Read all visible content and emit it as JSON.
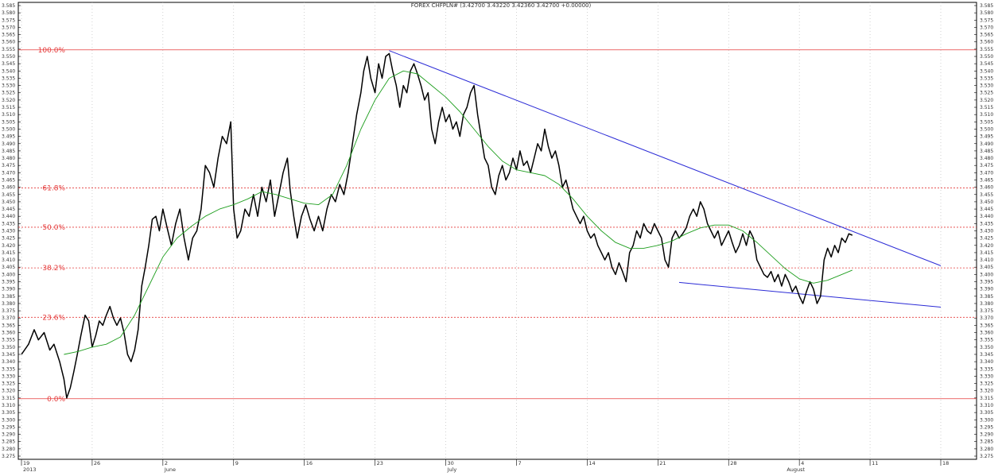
{
  "chart_data": {
    "type": "line",
    "title": "FOREX CHFPLN# (3.42700 3.43220 3.42360 3.42700 +0.00000)",
    "ylim": [
      3.275,
      3.585
    ],
    "y_tick_step": 0.005,
    "x_range": [
      0,
      130
    ],
    "grid": true,
    "x_ticks": [
      {
        "x": 0,
        "label": "19"
      },
      {
        "x": 10,
        "label": "26"
      },
      {
        "x": 20,
        "label": "2"
      },
      {
        "x": 30,
        "label": "9"
      },
      {
        "x": 40,
        "label": "16"
      },
      {
        "x": 50,
        "label": "23"
      },
      {
        "x": 60,
        "label": "30"
      },
      {
        "x": 70,
        "label": "7"
      },
      {
        "x": 80,
        "label": "14"
      },
      {
        "x": 90,
        "label": "21"
      },
      {
        "x": 100,
        "label": "28"
      },
      {
        "x": 110,
        "label": "4"
      },
      {
        "x": 120,
        "label": "11"
      },
      {
        "x": 130,
        "label": "18"
      }
    ],
    "x_subticks": [
      {
        "x": 0,
        "label": "2013"
      },
      {
        "x": 20,
        "label": "June"
      },
      {
        "x": 60,
        "label": "July"
      },
      {
        "x": 108,
        "label": "August"
      }
    ],
    "fib_levels": [
      {
        "name": "100.0%",
        "value": 3.5545
      },
      {
        "name": "61.8%",
        "value": 3.4595
      },
      {
        "name": "50.0%",
        "value": 3.4325
      },
      {
        "name": "38.2%",
        "value": 3.4045
      },
      {
        "name": "23.6%",
        "value": 3.3705
      },
      {
        "name": "0.0%",
        "value": 3.3145
      }
    ],
    "trendlines": [
      {
        "name": "resistance",
        "points": [
          [
            52,
            3.554
          ],
          [
            130,
            3.406
          ]
        ]
      },
      {
        "name": "support",
        "points": [
          [
            93,
            3.3945
          ],
          [
            130,
            3.3775
          ]
        ]
      }
    ],
    "series": [
      {
        "values": [
          [
            0,
            3.345
          ],
          [
            1,
            3.352
          ],
          [
            1.8,
            3.362
          ],
          [
            2.4,
            3.355
          ],
          [
            3.2,
            3.36
          ],
          [
            4,
            3.348
          ],
          [
            4.6,
            3.352
          ],
          [
            5.4,
            3.34
          ],
          [
            6,
            3.328
          ],
          [
            6.4,
            3.315
          ],
          [
            6.9,
            3.322
          ],
          [
            7.4,
            3.333
          ],
          [
            7.9,
            3.345
          ],
          [
            8.4,
            3.358
          ],
          [
            9,
            3.372
          ],
          [
            9.5,
            3.368
          ],
          [
            10,
            3.35
          ],
          [
            10.5,
            3.358
          ],
          [
            11,
            3.368
          ],
          [
            11.5,
            3.365
          ],
          [
            12,
            3.372
          ],
          [
            12.5,
            3.378
          ],
          [
            13,
            3.37
          ],
          [
            13.5,
            3.365
          ],
          [
            14,
            3.37
          ],
          [
            14.5,
            3.36
          ],
          [
            15,
            3.345
          ],
          [
            15.5,
            3.34
          ],
          [
            16,
            3.348
          ],
          [
            16.5,
            3.362
          ],
          [
            17,
            3.392
          ],
          [
            17.5,
            3.405
          ],
          [
            18,
            3.42
          ],
          [
            18.5,
            3.438
          ],
          [
            19,
            3.44
          ],
          [
            19.5,
            3.43
          ],
          [
            20,
            3.445
          ],
          [
            20.6,
            3.432
          ],
          [
            21.2,
            3.42
          ],
          [
            21.8,
            3.435
          ],
          [
            22.4,
            3.445
          ],
          [
            23,
            3.425
          ],
          [
            23.6,
            3.41
          ],
          [
            24.2,
            3.425
          ],
          [
            24.8,
            3.43
          ],
          [
            25.4,
            3.445
          ],
          [
            26,
            3.475
          ],
          [
            26.6,
            3.47
          ],
          [
            27.2,
            3.46
          ],
          [
            27.8,
            3.48
          ],
          [
            28.4,
            3.495
          ],
          [
            29,
            3.49
          ],
          [
            29.6,
            3.505
          ],
          [
            30,
            3.445
          ],
          [
            30.5,
            3.425
          ],
          [
            31,
            3.43
          ],
          [
            31.6,
            3.445
          ],
          [
            32.2,
            3.44
          ],
          [
            32.8,
            3.455
          ],
          [
            33.4,
            3.44
          ],
          [
            34,
            3.46
          ],
          [
            34.6,
            3.45
          ],
          [
            35.2,
            3.465
          ],
          [
            35.8,
            3.44
          ],
          [
            36.4,
            3.455
          ],
          [
            37,
            3.47
          ],
          [
            37.6,
            3.48
          ],
          [
            38,
            3.458
          ],
          [
            38.5,
            3.44
          ],
          [
            39,
            3.425
          ],
          [
            39.6,
            3.44
          ],
          [
            40.2,
            3.448
          ],
          [
            40.8,
            3.438
          ],
          [
            41.4,
            3.43
          ],
          [
            42,
            3.44
          ],
          [
            42.6,
            3.43
          ],
          [
            43.2,
            3.445
          ],
          [
            43.8,
            3.455
          ],
          [
            44.4,
            3.45
          ],
          [
            45,
            3.462
          ],
          [
            45.6,
            3.455
          ],
          [
            46.2,
            3.47
          ],
          [
            46.8,
            3.49
          ],
          [
            47.4,
            3.51
          ],
          [
            48,
            3.525
          ],
          [
            48.4,
            3.54
          ],
          [
            48.9,
            3.55
          ],
          [
            49.4,
            3.535
          ],
          [
            50,
            3.525
          ],
          [
            50.5,
            3.545
          ],
          [
            51,
            3.535
          ],
          [
            51.5,
            3.55
          ],
          [
            52,
            3.552
          ],
          [
            52.5,
            3.54
          ],
          [
            53,
            3.53
          ],
          [
            53.5,
            3.515
          ],
          [
            54,
            3.53
          ],
          [
            54.5,
            3.525
          ],
          [
            55,
            3.54
          ],
          [
            55.5,
            3.545
          ],
          [
            56,
            3.538
          ],
          [
            56.5,
            3.53
          ],
          [
            57,
            3.52
          ],
          [
            57.5,
            3.525
          ],
          [
            58,
            3.5
          ],
          [
            58.5,
            3.49
          ],
          [
            59,
            3.505
          ],
          [
            59.5,
            3.515
          ],
          [
            60,
            3.505
          ],
          [
            60.5,
            3.51
          ],
          [
            61,
            3.5
          ],
          [
            61.5,
            3.505
          ],
          [
            62,
            3.495
          ],
          [
            62.5,
            3.51
          ],
          [
            63,
            3.515
          ],
          [
            63.5,
            3.525
          ],
          [
            64,
            3.53
          ],
          [
            64.5,
            3.51
          ],
          [
            65,
            3.495
          ],
          [
            65.5,
            3.48
          ],
          [
            66,
            3.475
          ],
          [
            66.5,
            3.46
          ],
          [
            67,
            3.455
          ],
          [
            67.5,
            3.468
          ],
          [
            68,
            3.475
          ],
          [
            68.5,
            3.465
          ],
          [
            69,
            3.47
          ],
          [
            69.5,
            3.48
          ],
          [
            70,
            3.472
          ],
          [
            70.5,
            3.485
          ],
          [
            71,
            3.475
          ],
          [
            71.5,
            3.478
          ],
          [
            72,
            3.47
          ],
          [
            72.5,
            3.48
          ],
          [
            73,
            3.49
          ],
          [
            73.5,
            3.485
          ],
          [
            74,
            3.5
          ],
          [
            74.5,
            3.488
          ],
          [
            75,
            3.48
          ],
          [
            75.5,
            3.485
          ],
          [
            76,
            3.475
          ],
          [
            76.5,
            3.46
          ],
          [
            77,
            3.465
          ],
          [
            77.5,
            3.455
          ],
          [
            78,
            3.445
          ],
          [
            78.5,
            3.44
          ],
          [
            79,
            3.435
          ],
          [
            79.5,
            3.44
          ],
          [
            80,
            3.43
          ],
          [
            80.5,
            3.425
          ],
          [
            81,
            3.428
          ],
          [
            81.5,
            3.42
          ],
          [
            82,
            3.415
          ],
          [
            82.5,
            3.41
          ],
          [
            83,
            3.415
          ],
          [
            83.5,
            3.405
          ],
          [
            84,
            3.4
          ],
          [
            84.5,
            3.408
          ],
          [
            85,
            3.402
          ],
          [
            85.5,
            3.395
          ],
          [
            86,
            3.415
          ],
          [
            86.5,
            3.42
          ],
          [
            87,
            3.43
          ],
          [
            87.5,
            3.425
          ],
          [
            88,
            3.435
          ],
          [
            88.5,
            3.43
          ],
          [
            89,
            3.428
          ],
          [
            89.5,
            3.435
          ],
          [
            90,
            3.43
          ],
          [
            90.5,
            3.425
          ],
          [
            91,
            3.41
          ],
          [
            91.5,
            3.405
          ],
          [
            92,
            3.425
          ],
          [
            92.5,
            3.43
          ],
          [
            93,
            3.425
          ],
          [
            93.5,
            3.428
          ],
          [
            94,
            3.432
          ],
          [
            94.5,
            3.44
          ],
          [
            95,
            3.445
          ],
          [
            95.5,
            3.44
          ],
          [
            96,
            3.45
          ],
          [
            96.5,
            3.445
          ],
          [
            97,
            3.435
          ],
          [
            97.5,
            3.43
          ],
          [
            98,
            3.425
          ],
          [
            98.5,
            3.43
          ],
          [
            99,
            3.42
          ],
          [
            99.5,
            3.425
          ],
          [
            100,
            3.43
          ],
          [
            100.5,
            3.422
          ],
          [
            101,
            3.415
          ],
          [
            101.5,
            3.42
          ],
          [
            102,
            3.428
          ],
          [
            102.5,
            3.42
          ],
          [
            103,
            3.43
          ],
          [
            103.5,
            3.425
          ],
          [
            104,
            3.41
          ],
          [
            104.5,
            3.405
          ],
          [
            105,
            3.4
          ],
          [
            105.5,
            3.398
          ],
          [
            106,
            3.402
          ],
          [
            106.5,
            3.395
          ],
          [
            107,
            3.4
          ],
          [
            107.5,
            3.392
          ],
          [
            108,
            3.4
          ],
          [
            108.5,
            3.395
          ],
          [
            109,
            3.388
          ],
          [
            109.5,
            3.392
          ],
          [
            110,
            3.385
          ],
          [
            110.5,
            3.38
          ],
          [
            111,
            3.388
          ],
          [
            111.5,
            3.395
          ],
          [
            112,
            3.39
          ],
          [
            112.5,
            3.38
          ],
          [
            113,
            3.385
          ],
          [
            113.5,
            3.41
          ],
          [
            114,
            3.418
          ],
          [
            114.5,
            3.412
          ],
          [
            115,
            3.42
          ],
          [
            115.5,
            3.415
          ],
          [
            116,
            3.425
          ],
          [
            116.5,
            3.422
          ],
          [
            117,
            3.428
          ],
          [
            117.5,
            3.427
          ]
        ]
      },
      {
        "values": [
          [
            6,
            3.345
          ],
          [
            8,
            3.347
          ],
          [
            10,
            3.35
          ],
          [
            12,
            3.352
          ],
          [
            14,
            3.357
          ],
          [
            16,
            3.372
          ],
          [
            18,
            3.392
          ],
          [
            20,
            3.412
          ],
          [
            22,
            3.425
          ],
          [
            24,
            3.433
          ],
          [
            26,
            3.44
          ],
          [
            28,
            3.445
          ],
          [
            30,
            3.448
          ],
          [
            32,
            3.452
          ],
          [
            34,
            3.457
          ],
          [
            36,
            3.455
          ],
          [
            38,
            3.452
          ],
          [
            40,
            3.449
          ],
          [
            42,
            3.448
          ],
          [
            44,
            3.455
          ],
          [
            46,
            3.475
          ],
          [
            48,
            3.5
          ],
          [
            50,
            3.52
          ],
          [
            52,
            3.535
          ],
          [
            54,
            3.54
          ],
          [
            56,
            3.538
          ],
          [
            58,
            3.53
          ],
          [
            60,
            3.522
          ],
          [
            62,
            3.512
          ],
          [
            64,
            3.5
          ],
          [
            66,
            3.488
          ],
          [
            68,
            3.478
          ],
          [
            70,
            3.472
          ],
          [
            72,
            3.47
          ],
          [
            74,
            3.468
          ],
          [
            76,
            3.462
          ],
          [
            78,
            3.452
          ],
          [
            80,
            3.44
          ],
          [
            82,
            3.43
          ],
          [
            84,
            3.422
          ],
          [
            86,
            3.418
          ],
          [
            88,
            3.418
          ],
          [
            90,
            3.42
          ],
          [
            92,
            3.423
          ],
          [
            94,
            3.428
          ],
          [
            96,
            3.432
          ],
          [
            98,
            3.434
          ],
          [
            100,
            3.434
          ],
          [
            102,
            3.43
          ],
          [
            104,
            3.422
          ],
          [
            106,
            3.413
          ],
          [
            108,
            3.404
          ],
          [
            110,
            3.397
          ],
          [
            112,
            3.394
          ],
          [
            114,
            3.396
          ],
          [
            116,
            3.4
          ],
          [
            117.5,
            3.403
          ]
        ]
      }
    ]
  }
}
